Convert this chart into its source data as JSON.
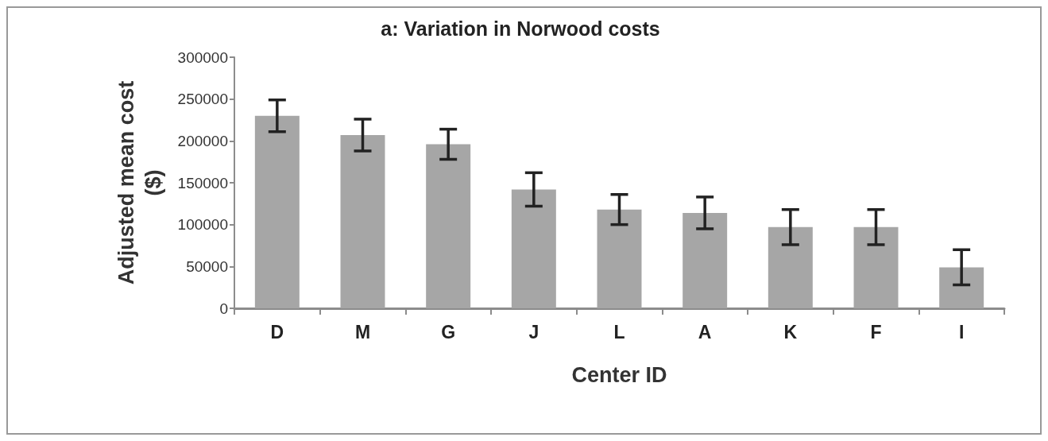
{
  "chart_data": {
    "type": "bar",
    "title": "a: Variation in Norwood costs",
    "xlabel": "Center ID",
    "ylabel": "Adjusted mean cost\n($)",
    "categories": [
      "D",
      "M",
      "G",
      "J",
      "L",
      "A",
      "K",
      "F",
      "I"
    ],
    "values": [
      230000,
      207000,
      196000,
      142000,
      118000,
      114000,
      97000,
      97000,
      49000
    ],
    "errors": [
      19000,
      19000,
      18000,
      20000,
      18000,
      19000,
      21000,
      21000,
      21000
    ],
    "color": "#a6a6a6",
    "ylim": [
      0,
      300000
    ],
    "yticks": [
      0,
      50000,
      100000,
      150000,
      200000,
      250000,
      300000
    ],
    "grid": false
  }
}
